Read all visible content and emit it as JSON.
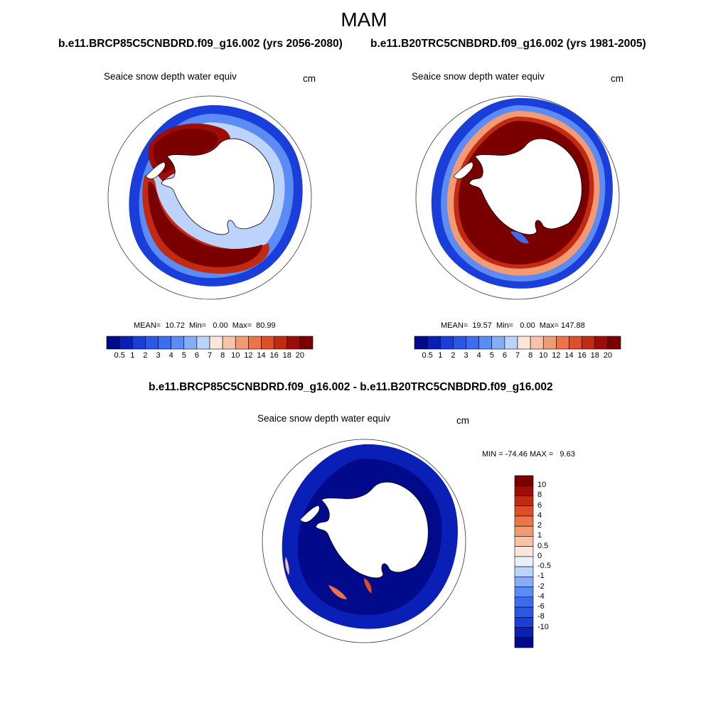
{
  "figure": {
    "season": "MAM",
    "units": "cm",
    "colors": {
      "seq": [
        "#000a8a",
        "#0a1fb5",
        "#1a3ed9",
        "#2a57e6",
        "#3c6df0",
        "#5b8bf5",
        "#86adf8",
        "#bcd3fb",
        "#fbe6da",
        "#f7c3a9",
        "#f29a73",
        "#ec7447",
        "#de4f28",
        "#c32a12",
        "#9e0d05",
        "#7a0000"
      ],
      "diff": [
        "#000a8a",
        "#0a1fb5",
        "#1a3ed9",
        "#2a57e6",
        "#3c6df0",
        "#5b8bf5",
        "#86adf8",
        "#bcd3fb",
        "#e8f0ff",
        "#fbe6da",
        "#f7c3a9",
        "#f29a73",
        "#ec7447",
        "#de4f28",
        "#c32a12",
        "#9e0d05",
        "#7a0000"
      ]
    }
  },
  "panels": [
    {
      "id": "future",
      "title": "b.e11.BRCP85C5CNBDRD.f09_g16.002 (yrs 2056-2080)",
      "variable": "Seaice snow depth water equiv",
      "units": "cm",
      "stats": "MEAN=  10.72  Min=   0.00  Max=  80.99",
      "colorbar_labels": [
        "0.5",
        "1",
        "2",
        "3",
        "4",
        "5",
        "6",
        "7",
        "8",
        "10",
        "12",
        "14",
        "16",
        "18",
        "20"
      ]
    },
    {
      "id": "historical",
      "title": "b.e11.B20TRC5CNBDRD.f09_g16.002 (yrs 1981-2005)",
      "variable": "Seaice snow depth water equiv",
      "units": "cm",
      "stats": "MEAN=  19.57  Min=   0.00  Max= 147.88",
      "colorbar_labels": [
        "0.5",
        "1",
        "2",
        "3",
        "4",
        "5",
        "6",
        "7",
        "8",
        "10",
        "12",
        "14",
        "16",
        "18",
        "20"
      ]
    },
    {
      "id": "difference",
      "title": "b.e11.BRCP85C5CNBDRD.f09_g16.002 - b.e11.B20TRC5CNBDRD.f09_g16.002",
      "variable": "Seaice snow depth water equiv",
      "units": "cm",
      "stats": "MIN = -74.46 MAX =   9.63",
      "colorbar_labels": [
        "10",
        "8",
        "6",
        "4",
        "2",
        "1",
        "0.5",
        "0",
        "-0.5",
        "-1",
        "-2",
        "-4",
        "-6",
        "-8",
        "-10"
      ]
    }
  ]
}
